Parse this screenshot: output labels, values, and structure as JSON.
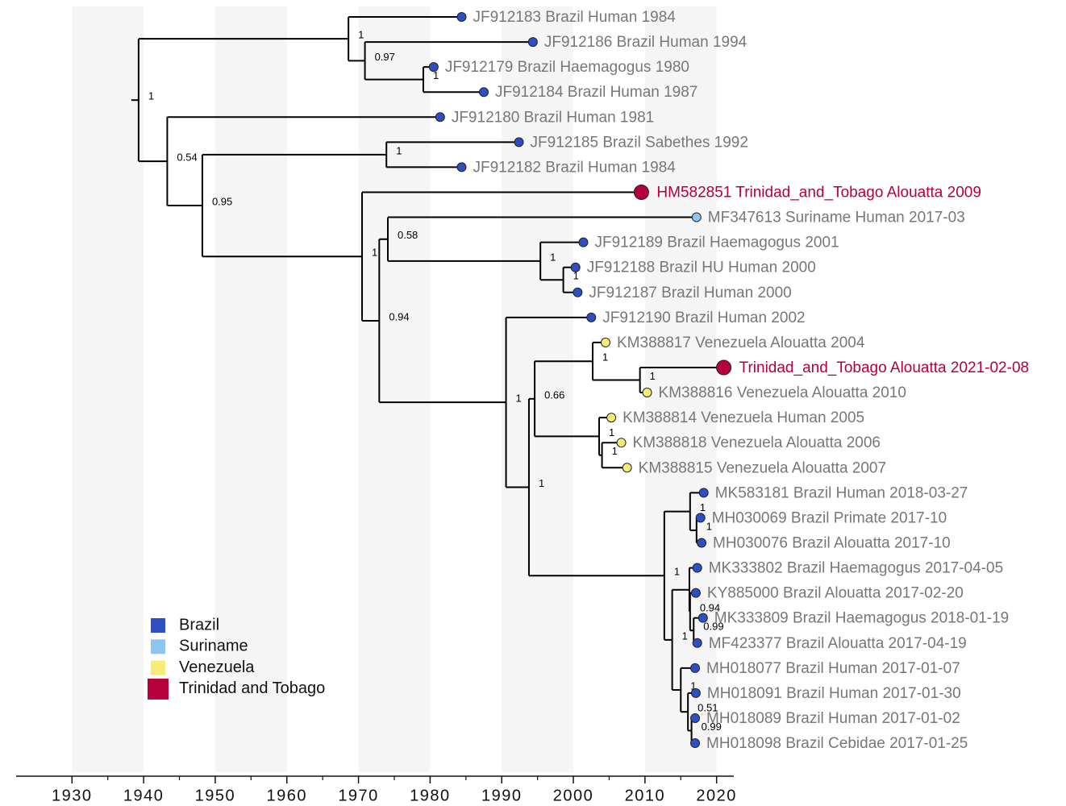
{
  "chart_data": {
    "type": "tree",
    "xlim": [
      1922.2,
      2022.4
    ],
    "xticks": [
      1930,
      1940,
      1950,
      1960,
      1970,
      1980,
      1990,
      2000,
      2010,
      2020
    ],
    "shaded_bands": true,
    "legend": [
      {
        "name": "Brazil",
        "color": "#2d4fc2"
      },
      {
        "name": "Suriname",
        "color": "#8ec5f0"
      },
      {
        "name": "Venezuela",
        "color": "#f5ec7a"
      },
      {
        "name": "Trinidad and Tobago",
        "color": "#b5003c"
      }
    ],
    "tree": {
      "time": 1939.3,
      "support": "1",
      "children": [
        {
          "time": 1968.6,
          "support": "1",
          "children": [
            {
              "label": "JF912183 Brazil Human 1984",
              "time": 1984.4,
              "color": "#2d4fc2"
            },
            {
              "time": 1970.9,
              "support": "0.97",
              "children": [
                {
                  "label": "JF912186 Brazil Human 1994",
                  "time": 1994.35,
                  "color": "#2d4fc2"
                },
                {
                  "time": 1979.05,
                  "support": "1",
                  "children": [
                    {
                      "label": "JF912179 Brazil Haemagogus 1980",
                      "time": 1980.5,
                      "color": "#2d4fc2"
                    },
                    {
                      "label": "JF912184 Brazil Human 1987",
                      "time": 1987.5,
                      "color": "#2d4fc2"
                    }
                  ]
                }
              ]
            }
          ]
        },
        {
          "time": 1943.3,
          "support": "0.54",
          "children": [
            {
              "label": "JF912180 Brazil Human 1981",
              "time": 1981.4,
              "color": "#2d4fc2"
            },
            {
              "time": 1948.2,
              "support": "0.95",
              "children": [
                {
                  "time": 1973.9,
                  "support": "1",
                  "children": [
                    {
                      "label": "JF912185 Brazil Sabethes 1992",
                      "time": 1992.4,
                      "color": "#2d4fc2"
                    },
                    {
                      "label": "JF912182 Brazil Human 1984",
                      "time": 1984.4,
                      "color": "#2d4fc2"
                    }
                  ]
                },
                {
                  "time": 1970.5,
                  "support": "1",
                  "children": [
                    {
                      "label": "HM582851 Trinidad_and_Tobago Alouatta 2009",
                      "time": 2009.5,
                      "color": "#b5003c",
                      "highlight": true
                    },
                    {
                      "time": 1972.9,
                      "support": "0.94",
                      "children": [
                        {
                          "time": 1974.1,
                          "support": "0.58",
                          "children": [
                            {
                              "label": "MF347613 Suriname Human 2017-03",
                              "time": 2017.2,
                              "color": "#8ec5f0"
                            },
                            {
                              "time": 1995.4,
                              "support": "1",
                              "children": [
                                {
                                  "label": "JF912189 Brazil Haemagogus 2001",
                                  "time": 2001.4,
                                  "color": "#2d4fc2"
                                },
                                {
                                  "time": 1998.6,
                                  "support": "1",
                                  "children": [
                                    {
                                      "label": "JF912188 Brazil HU Human 2000",
                                      "time": 2000.3,
                                      "color": "#2d4fc2"
                                    },
                                    {
                                      "label": "JF912187 Brazil Human 2000",
                                      "time": 2000.6,
                                      "color": "#2d4fc2"
                                    }
                                  ]
                                }
                              ]
                            }
                          ]
                        },
                        {
                          "time": 1990.6,
                          "support": "1",
                          "children": [
                            {
                              "label": "JF912190 Brazil Human 2002",
                              "time": 2002.5,
                              "color": "#2d4fc2"
                            },
                            {
                              "time": 1993.8,
                              "support": "1",
                              "children": [
                                {
                                  "time": 1994.6,
                                  "support": "0.66",
                                  "children": [
                                    {
                                      "time": 2002.7,
                                      "support": "1",
                                      "children": [
                                        {
                                          "label": "KM388817 Venezuela Alouatta 2004",
                                          "time": 2004.5,
                                          "color": "#f5ec7a"
                                        },
                                        {
                                          "time": 2009.3,
                                          "support": "1",
                                          "children": [
                                            {
                                              "label": "Trinidad_and_Tobago Alouatta 2021-02-08",
                                              "time": 2021.0,
                                              "color": "#b5003c",
                                              "highlight": true
                                            },
                                            {
                                              "label": "KM388816 Venezuela Alouatta 2010",
                                              "time": 2010.3,
                                              "color": "#f5ec7a"
                                            }
                                          ]
                                        }
                                      ]
                                    },
                                    {
                                      "time": 2003.6,
                                      "support": "1",
                                      "children": [
                                        {
                                          "label": "KM388814 Venezuela Human 2005",
                                          "time": 2005.3,
                                          "color": "#f5ec7a"
                                        },
                                        {
                                          "time": 2004.0,
                                          "support": "1",
                                          "children": [
                                            {
                                              "label": "KM388818 Venezuela Alouatta 2006",
                                              "time": 2006.7,
                                              "color": "#f5ec7a"
                                            },
                                            {
                                              "label": "KM388815 Venezuela Alouatta 2007",
                                              "time": 2007.5,
                                              "color": "#f5ec7a"
                                            }
                                          ]
                                        }
                                      ]
                                    }
                                  ]
                                },
                                {
                                  "time": 2012.7,
                                  "support": "1",
                                  "children": [
                                    {
                                      "time": 2016.3,
                                      "support": "1",
                                      "children": [
                                        {
                                          "label": "MK583181 Brazil Human 2018-03-27",
                                          "time": 2018.2,
                                          "color": "#2d4fc2"
                                        },
                                        {
                                          "time": 2017.2,
                                          "support": "1",
                                          "children": [
                                            {
                                              "label": "MH030069 Brazil Primate 2017-10",
                                              "time": 2017.75,
                                              "color": "#2d4fc2"
                                            },
                                            {
                                              "label": "MH030076 Brazil Alouatta 2017-10",
                                              "time": 2017.9,
                                              "color": "#2d4fc2"
                                            }
                                          ]
                                        }
                                      ]
                                    },
                                    {
                                      "time": 2013.8,
                                      "support": "1",
                                      "children": [
                                        {
                                          "time": 2016.2,
                                          "children": [
                                            {
                                              "label": "MK333802 Brazil Haemagogus 2017-04-05",
                                              "time": 2017.3,
                                              "color": "#2d4fc2"
                                            },
                                            {
                                              "time": 2016.3,
                                              "support": "0.94",
                                              "children": [
                                                {
                                                  "label": "KY885000 Brazil Alouatta 2017-02-20",
                                                  "time": 2017.1,
                                                  "color": "#2d4fc2"
                                                },
                                                {
                                                  "time": 2016.8,
                                                  "support": "0.99",
                                                  "children": [
                                                    {
                                                      "label": "MK333809 Brazil Haemagogus 2018-01-19",
                                                      "time": 2018.1,
                                                      "color": "#2d4fc2"
                                                    },
                                                    {
                                                      "label": "MF423377 Brazil Alouatta 2017-04-19",
                                                      "time": 2017.3,
                                                      "color": "#2d4fc2"
                                                    }
                                                  ]
                                                }
                                              ]
                                            }
                                          ]
                                        },
                                        {
                                          "time": 2015.0,
                                          "support": "1",
                                          "children": [
                                            {
                                              "label": "MH018077 Brazil Human 2017-01-07",
                                              "time": 2017.0,
                                              "color": "#2d4fc2"
                                            },
                                            {
                                              "time": 2016.0,
                                              "support": "0.51",
                                              "children": [
                                                {
                                                  "label": "MH018091 Brazil Human 2017-01-30",
                                                  "time": 2017.1,
                                                  "color": "#2d4fc2"
                                                },
                                                {
                                                  "time": 2016.5,
                                                  "support": "0.99",
                                                  "children": [
                                                    {
                                                      "label": "MH018089 Brazil Human 2017-01-02",
                                                      "time": 2017.0,
                                                      "color": "#2d4fc2"
                                                    },
                                                    {
                                                      "label": "MH018098 Brazil Cebidae 2017-01-25",
                                                      "time": 2017.0,
                                                      "color": "#2d4fc2"
                                                    }
                                                  ]
                                                }
                                              ]
                                            }
                                          ]
                                        }
                                      ]
                                    }
                                  ]
                                }
                              ]
                            }
                          ]
                        }
                      ]
                    }
                  ]
                }
              ]
            }
          ]
        }
      ]
    }
  }
}
